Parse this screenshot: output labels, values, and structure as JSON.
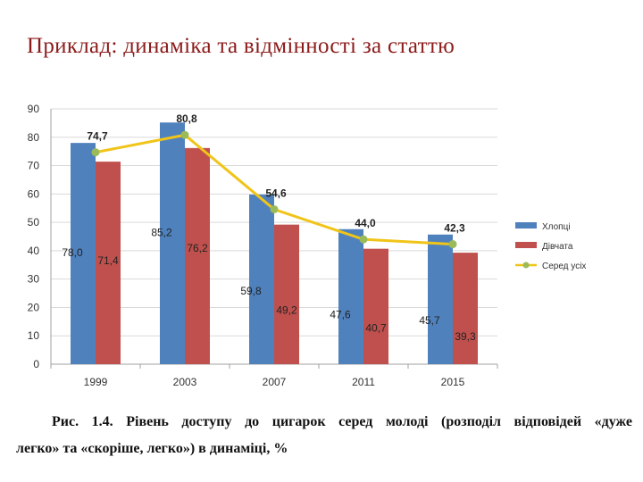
{
  "slide": {
    "title": "Приклад: динаміка та відмінності за статтю"
  },
  "caption": {
    "line1": "Рис. 1.4. Рівень доступу до цигарок серед молоді (розподіл відповідей «дуже",
    "line2": "легко» та «скоріше, легко») в динаміці, %"
  },
  "chart_data": {
    "type": "bar",
    "title": "",
    "xlabel": "",
    "ylabel": "",
    "categories": [
      "1999",
      "2003",
      "2007",
      "2011",
      "2015"
    ],
    "ylim": [
      0,
      90
    ],
    "yticks": [
      0,
      10,
      20,
      30,
      40,
      50,
      60,
      70,
      80,
      90
    ],
    "grid": true,
    "legend_position": "right",
    "series": [
      {
        "name": "Хлопці",
        "type": "bar",
        "color": "#4f81bd",
        "values": [
          78.0,
          85.2,
          59.8,
          47.6,
          45.7
        ],
        "labels": [
          "78,0",
          "85,2",
          "59,8",
          "47,6",
          "45,7"
        ]
      },
      {
        "name": "Дівчата",
        "type": "bar",
        "color": "#c0504d",
        "values": [
          71.4,
          76.2,
          49.2,
          40.7,
          39.3
        ],
        "labels": [
          "71,4",
          "76,2",
          "49,2",
          "40,7",
          "39,3"
        ]
      },
      {
        "name": "Серед усіх",
        "type": "line",
        "color": "#f0c419",
        "marker_color": "#9bbb59",
        "values": [
          74.7,
          80.8,
          54.6,
          44.0,
          42.3
        ],
        "labels": [
          "74,7",
          "80,8",
          "54,6",
          "44,0",
          "42,3"
        ]
      }
    ]
  }
}
